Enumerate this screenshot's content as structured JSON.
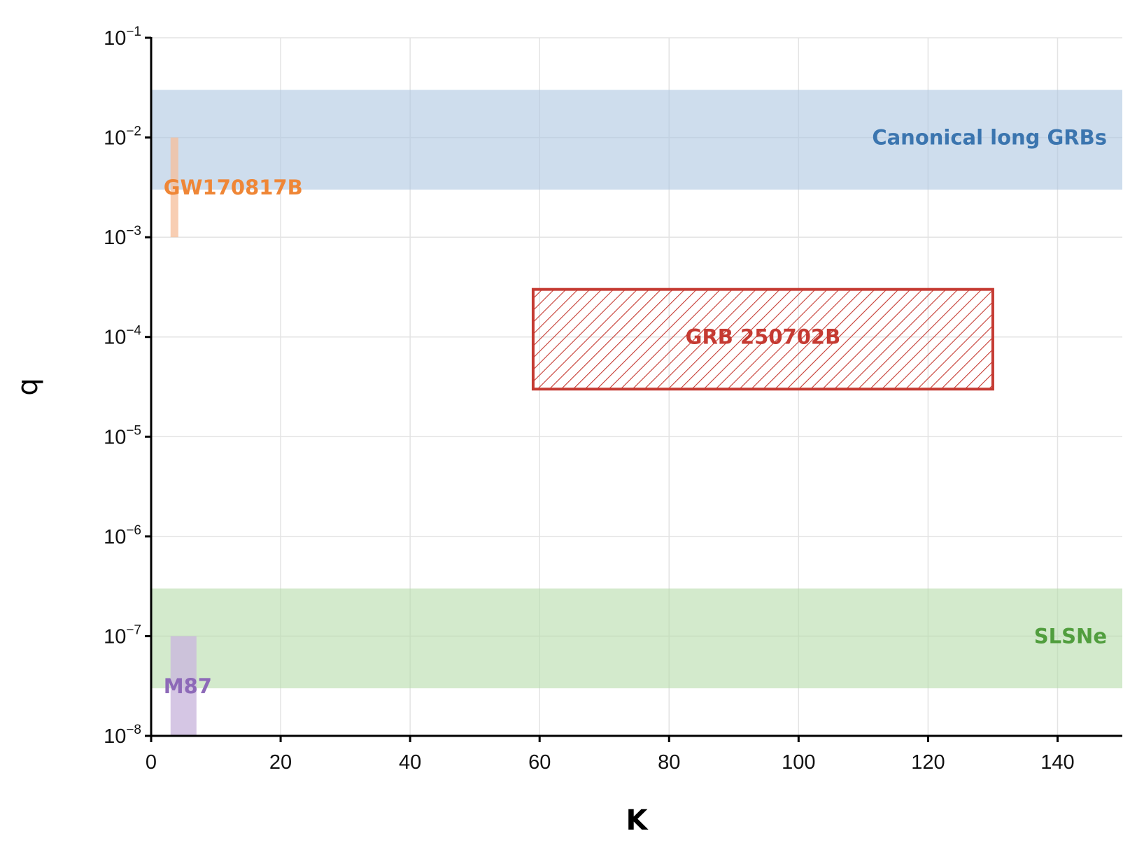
{
  "chart_data": {
    "type": "area",
    "title": "",
    "xlabel": "K",
    "ylabel": "q",
    "xlim": [
      0,
      150
    ],
    "ylim": [
      1e-08,
      0.1
    ],
    "yscale": "log",
    "grid": true,
    "x_ticks": [
      0,
      20,
      40,
      60,
      80,
      100,
      120,
      140
    ],
    "y_ticks": [
      {
        "value": 0.1,
        "base": "10",
        "exp": "−1"
      },
      {
        "value": 0.01,
        "base": "10",
        "exp": "−2"
      },
      {
        "value": 0.001,
        "base": "10",
        "exp": "−3"
      },
      {
        "value": 0.0001,
        "base": "10",
        "exp": "−4"
      },
      {
        "value": 1e-05,
        "base": "10",
        "exp": "−5"
      },
      {
        "value": 1e-06,
        "base": "10",
        "exp": "−6"
      },
      {
        "value": 1e-07,
        "base": "10",
        "exp": "−7"
      },
      {
        "value": 1e-08,
        "base": "10",
        "exp": "−8"
      }
    ],
    "regions": [
      {
        "label": "Canonical long GRBs",
        "x": [
          0,
          150
        ],
        "y": [
          0.003,
          0.03
        ],
        "fill": "#aec7e1",
        "opacity": 0.6,
        "text_color": "#3b75af",
        "label_anchor": "right",
        "label_y": 0.01
      },
      {
        "label": "SLSNe",
        "x": [
          0,
          150
        ],
        "y": [
          3e-08,
          3e-07
        ],
        "fill": "#b6dcaa",
        "opacity": 0.6,
        "text_color": "#519e3e",
        "label_anchor": "right",
        "label_y": 1e-07
      },
      {
        "label": "GW170817B",
        "x": [
          3,
          4.2
        ],
        "y": [
          0.001,
          0.01
        ],
        "fill": "#f6be9a",
        "opacity": 0.75,
        "text_color": "#ef8636",
        "label_anchor": "left",
        "label_y": 0.00316
      },
      {
        "label": "M87",
        "x": [
          3,
          7
        ],
        "y": [
          1e-08,
          1e-07
        ],
        "fill": "#cbb8dd",
        "opacity": 0.8,
        "text_color": "#8d69b8",
        "label_anchor": "left",
        "label_y": 3.16e-08
      },
      {
        "label": "GRB 250702B",
        "x": [
          59,
          130
        ],
        "y": [
          3e-05,
          0.0003
        ],
        "fill": "none",
        "hatch": true,
        "edge_color": "#c53a32",
        "text_color": "#c53a32",
        "label_anchor": "center",
        "label_y": 0.0001
      }
    ]
  }
}
